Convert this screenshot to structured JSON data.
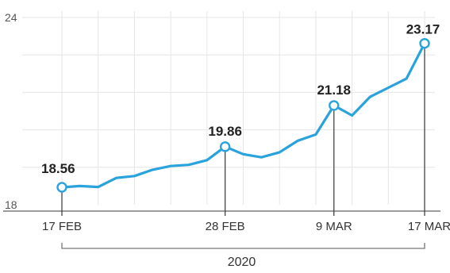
{
  "colors": {
    "line": "#2aa3dc"
  },
  "chart_data": {
    "type": "line",
    "title": "",
    "xlabel": "",
    "ylabel": "",
    "ylim": [
      18,
      24
    ],
    "y_ticks": [
      "24",
      "18"
    ],
    "x_ticks": [
      {
        "index": 0,
        "label": "17 FEB"
      },
      {
        "index": 9,
        "label": "28 FEB"
      },
      {
        "index": 15,
        "label": "9 MAR"
      },
      {
        "index": 20,
        "label": "17 MAR"
      }
    ],
    "year_label": "2020",
    "grid": true,
    "series": [
      {
        "values": [
          18.56,
          18.6,
          18.57,
          18.86,
          18.92,
          19.12,
          19.24,
          19.28,
          19.43,
          19.86,
          19.62,
          19.52,
          19.68,
          20.05,
          20.25,
          21.18,
          20.86,
          21.46,
          21.75,
          22.04,
          23.17
        ]
      }
    ],
    "annotations": [
      {
        "index": 0,
        "label": "18.56"
      },
      {
        "index": 9,
        "label": "19.86"
      },
      {
        "index": 15,
        "label": "21.18"
      },
      {
        "index": 20,
        "label": "23.17"
      }
    ]
  }
}
